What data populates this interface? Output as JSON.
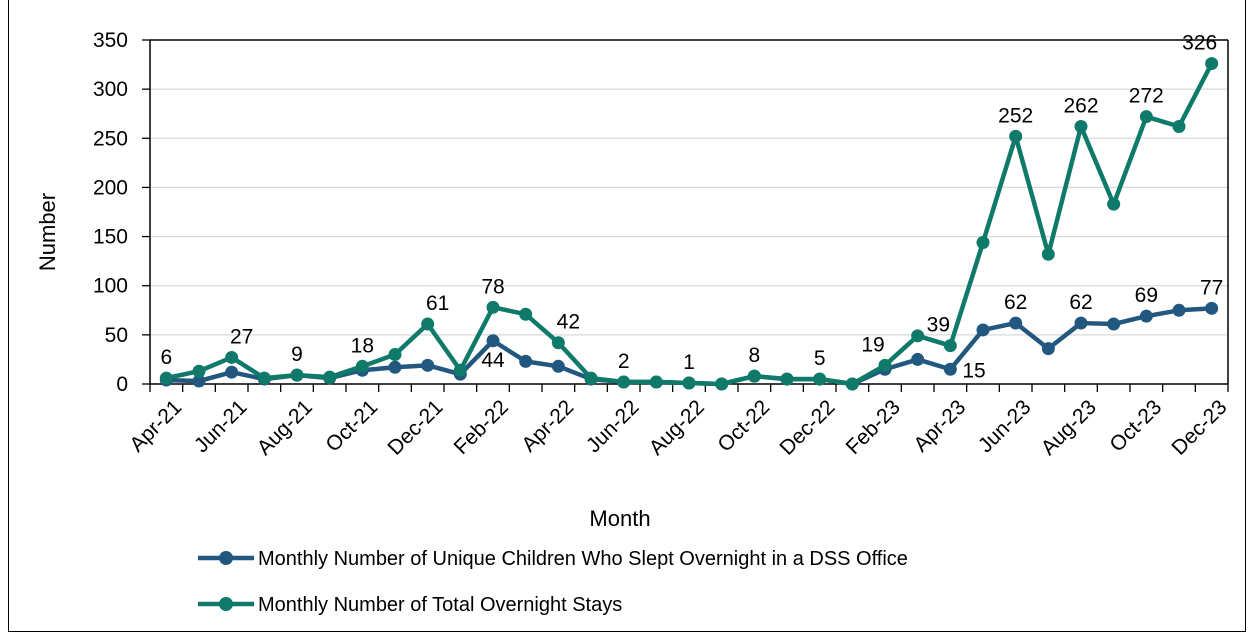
{
  "chart_data": {
    "type": "line",
    "xlabel": "Month",
    "ylabel": "Number",
    "ylim": [
      0,
      350
    ],
    "yticks": [
      0,
      50,
      100,
      150,
      200,
      250,
      300,
      350
    ],
    "grid": "horizontal",
    "legend_position": "bottom",
    "x": [
      "Apr-21",
      "May-21",
      "Jun-21",
      "Jul-21",
      "Aug-21",
      "Sep-21",
      "Oct-21",
      "Nov-21",
      "Dec-21",
      "Jan-22",
      "Feb-22",
      "Mar-22",
      "Apr-22",
      "May-22",
      "Jun-22",
      "Jul-22",
      "Aug-22",
      "Sep-22",
      "Oct-22",
      "Nov-22",
      "Dec-22",
      "Jan-23",
      "Feb-23",
      "Mar-23",
      "Apr-23",
      "May-23",
      "Jun-23",
      "Jul-23",
      "Aug-23",
      "Sep-23",
      "Oct-23",
      "Nov-23",
      "Dec-23"
    ],
    "x_tick_labels": [
      "Apr-21",
      "Jun-21",
      "Aug-21",
      "Oct-21",
      "Dec-21",
      "Feb-22",
      "Apr-22",
      "Jun-22",
      "Aug-22",
      "Oct-22",
      "Dec-22",
      "Feb-23",
      "Apr-23",
      "Jun-23",
      "Aug-23",
      "Oct-23",
      "Dec-23"
    ],
    "series": [
      {
        "name": "Monthly Number of Unique Children Who Slept Overnight in a DSS Office",
        "color": "#22587f",
        "values": [
          4,
          3,
          12,
          5,
          9,
          6,
          14,
          17,
          19,
          10,
          44,
          23,
          18,
          5,
          2,
          2,
          1,
          0,
          8,
          5,
          5,
          0,
          15,
          25,
          15,
          55,
          62,
          36,
          62,
          61,
          69,
          75,
          77
        ]
      },
      {
        "name": "Monthly Number of Total Overnight Stays",
        "color": "#0f7a6a",
        "values": [
          6,
          13,
          27,
          6,
          9,
          7,
          18,
          30,
          61,
          14,
          78,
          71,
          42,
          6,
          2,
          2,
          1,
          0,
          8,
          5,
          5,
          0,
          19,
          49,
          39,
          144,
          252,
          132,
          262,
          183,
          272,
          262,
          326
        ]
      }
    ],
    "data_labels": [
      {
        "text": "6",
        "series": 1,
        "index": 0,
        "pos": "above"
      },
      {
        "text": "27",
        "series": 1,
        "index": 2,
        "pos": "above-right"
      },
      {
        "text": "9",
        "series": 1,
        "index": 4,
        "pos": "above"
      },
      {
        "text": "18",
        "series": 1,
        "index": 6,
        "pos": "above"
      },
      {
        "text": "61",
        "series": 1,
        "index": 8,
        "pos": "above-right"
      },
      {
        "text": "78",
        "series": 1,
        "index": 10,
        "pos": "above"
      },
      {
        "text": "44",
        "series": 0,
        "index": 10,
        "pos": "below"
      },
      {
        "text": "42",
        "series": 1,
        "index": 12,
        "pos": "above-right"
      },
      {
        "text": "2",
        "series": 1,
        "index": 14,
        "pos": "above"
      },
      {
        "text": "1",
        "series": 1,
        "index": 16,
        "pos": "above"
      },
      {
        "text": "8",
        "series": 1,
        "index": 18,
        "pos": "above"
      },
      {
        "text": "5",
        "series": 1,
        "index": 20,
        "pos": "above"
      },
      {
        "text": "19",
        "series": 1,
        "index": 22,
        "pos": "above-left"
      },
      {
        "text": "39",
        "series": 1,
        "index": 24,
        "pos": "above-left"
      },
      {
        "text": "15",
        "series": 0,
        "index": 24,
        "pos": "right"
      },
      {
        "text": "252",
        "series": 1,
        "index": 26,
        "pos": "above"
      },
      {
        "text": "62",
        "series": 0,
        "index": 26,
        "pos": "above"
      },
      {
        "text": "262",
        "series": 1,
        "index": 28,
        "pos": "above"
      },
      {
        "text": "62",
        "series": 0,
        "index": 28,
        "pos": "above"
      },
      {
        "text": "272",
        "series": 1,
        "index": 30,
        "pos": "above"
      },
      {
        "text": "69",
        "series": 0,
        "index": 30,
        "pos": "above"
      },
      {
        "text": "326",
        "series": 1,
        "index": 32,
        "pos": "above-left"
      },
      {
        "text": "77",
        "series": 0,
        "index": 32,
        "pos": "above"
      }
    ]
  }
}
